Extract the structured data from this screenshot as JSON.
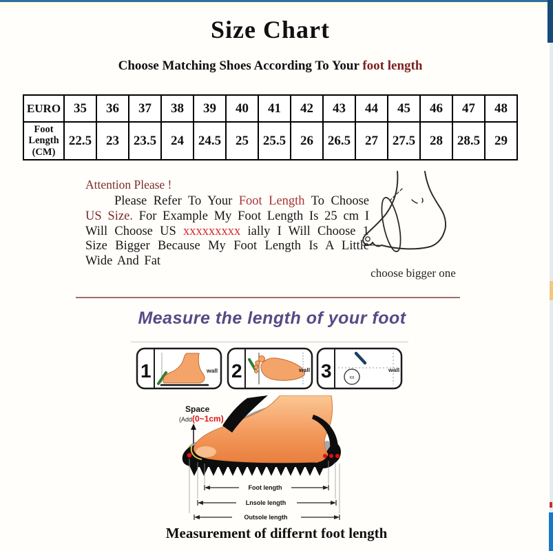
{
  "page": {
    "title": "Size Chart",
    "subtitle_prefix": "Choose Matching Shoes According To Your ",
    "subtitle_highlight": "foot length",
    "bottom_caption": "Measurement of differnt foot length"
  },
  "size_table": {
    "rows": [
      {
        "header": "EURO",
        "values": [
          "35",
          "36",
          "37",
          "38",
          "39",
          "40",
          "41",
          "42",
          "43",
          "44",
          "45",
          "46",
          "47",
          "48"
        ]
      },
      {
        "header": "Foot Length (CM)",
        "values": [
          "22.5",
          "23",
          "23.5",
          "24",
          "24.5",
          "25",
          "25.5",
          "26",
          "26.5",
          "27",
          "27.5",
          "28",
          "28.5",
          "29"
        ]
      }
    ]
  },
  "attention": {
    "heading": "Attention Please !",
    "body_segments": [
      {
        "text": "Please Refer To Your ",
        "color": "default"
      },
      {
        "text": "Foot Length",
        "color": "red"
      },
      {
        "text": " To Choose ",
        "color": "default"
      },
      {
        "text": "US Size.",
        "color": "maroon"
      },
      {
        "text": " For Example My Foot Length Is 25 cm I Will Choose US ",
        "color": "default"
      },
      {
        "text": "xxxxxxxxx",
        "color": "bright"
      },
      {
        "text": " ially I Will Choose 1 Size Bigger Because My Foot Length Is A Little Wide And Fat",
        "color": "default"
      }
    ],
    "sketch_note": "choose bigger one"
  },
  "measure_section": {
    "heading": "Measure the length of your foot",
    "steps": [
      {
        "number": "1",
        "wall_label": "wall"
      },
      {
        "number": "2",
        "wall_label": "wall"
      },
      {
        "number": "3",
        "wall_label": "wall",
        "circle_glyph": "xx"
      }
    ],
    "diagram": {
      "space_label": "Space",
      "space_note_prefix": "(Add",
      "space_note_value": "(0~1cm)",
      "arrow_labels": [
        "Foot length",
        "Lnsole length",
        "Outsole length"
      ]
    }
  },
  "colors": {
    "accent_maroon": "#7b2b2b",
    "accent_red": "#d42626",
    "accent_purple": "#564a86",
    "top_border_blue": "#2f6f9f",
    "foot_orange": "#f39a5d",
    "pen_green": "#2e7d32"
  },
  "chart_data": {
    "type": "table",
    "title": "Size Chart",
    "columns": [
      "EURO",
      "Foot Length (CM)"
    ],
    "mapping": [
      {
        "euro": "35",
        "foot_length_cm": "22.5"
      },
      {
        "euro": "36",
        "foot_length_cm": "23"
      },
      {
        "euro": "37",
        "foot_length_cm": "23.5"
      },
      {
        "euro": "38",
        "foot_length_cm": "24"
      },
      {
        "euro": "39",
        "foot_length_cm": "24.5"
      },
      {
        "euro": "40",
        "foot_length_cm": "25"
      },
      {
        "euro": "41",
        "foot_length_cm": "25.5"
      },
      {
        "euro": "42",
        "foot_length_cm": "26"
      },
      {
        "euro": "43",
        "foot_length_cm": "26.5"
      },
      {
        "euro": "44",
        "foot_length_cm": "27"
      },
      {
        "euro": "45",
        "foot_length_cm": "27.5"
      },
      {
        "euro": "46",
        "foot_length_cm": "28"
      },
      {
        "euro": "47",
        "foot_length_cm": "28.5"
      },
      {
        "euro": "48",
        "foot_length_cm": "29"
      }
    ]
  }
}
